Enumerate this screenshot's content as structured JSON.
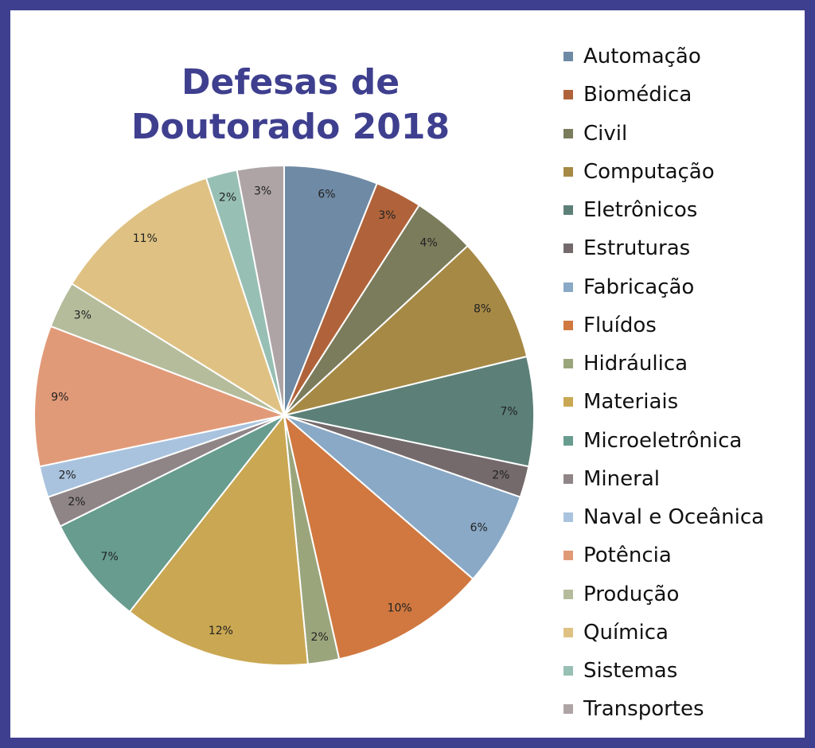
{
  "chart_data": {
    "type": "pie",
    "title_lines": [
      "Defesas de",
      "Doutorado 2018"
    ],
    "legend_position": "right",
    "start_angle": "12 o'clock, clockwise",
    "slices": [
      {
        "label": "Automação",
        "value": 6,
        "value_label": "6%",
        "color": "#6f8aa5"
      },
      {
        "label": "Biomédica",
        "value": 3,
        "value_label": "3%",
        "color": "#b0633a"
      },
      {
        "label": "Civil",
        "value": 4,
        "value_label": "4%",
        "color": "#7b7c5c"
      },
      {
        "label": "Computação",
        "value": 8,
        "value_label": "8%",
        "color": "#a68945"
      },
      {
        "label": "Eletrônicos",
        "value": 7,
        "value_label": "7%",
        "color": "#5c8078"
      },
      {
        "label": "Estruturas",
        "value": 2,
        "value_label": "2%",
        "color": "#746a6c"
      },
      {
        "label": "Fabricação",
        "value": 6,
        "value_label": "6%",
        "color": "#89a9c6"
      },
      {
        "label": "Fluídos",
        "value": 10,
        "value_label": "10%",
        "color": "#d07840"
      },
      {
        "label": "Hidráulica",
        "value": 2,
        "value_label": "2%",
        "color": "#9ba57c"
      },
      {
        "label": "Materiais",
        "value": 12,
        "value_label": "12%",
        "color": "#caa752"
      },
      {
        "label": "Microeletrônica",
        "value": 7,
        "value_label": "7%",
        "color": "#679c8e"
      },
      {
        "label": "Mineral",
        "value": 2,
        "value_label": "2%",
        "color": "#8f8587"
      },
      {
        "label": "Naval e Oceânica",
        "value": 2,
        "value_label": "2%",
        "color": "#a9c3de"
      },
      {
        "label": "Potência",
        "value": 9,
        "value_label": "9%",
        "color": "#e19a78"
      },
      {
        "label": "Produção",
        "value": 3,
        "value_label": "3%",
        "color": "#b5bc9b"
      },
      {
        "label": "Química",
        "value": 11,
        "value_label": "11%",
        "color": "#dfc283"
      },
      {
        "label": "Sistemas",
        "value": 2,
        "value_label": "2%",
        "color": "#98bfb4"
      },
      {
        "label": "Transportes",
        "value": 3,
        "value_label": "3%",
        "color": "#aea4a6"
      }
    ]
  },
  "colors": {
    "frame": "#3f3f8f",
    "title": "#3f3f8f",
    "slice_border": "#ffffff"
  }
}
